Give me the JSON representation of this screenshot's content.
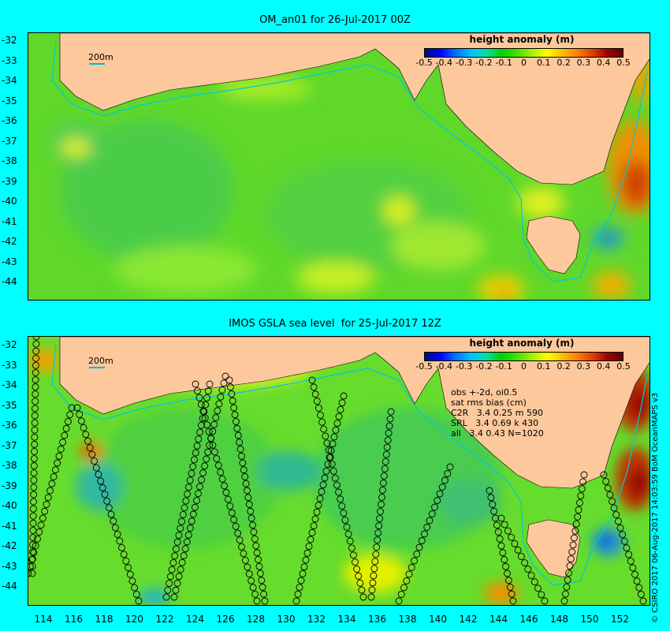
{
  "panel_top": {
    "title": "OM_an01 for 26-Jul-2017 00Z",
    "colorbar_title": "height anomaly (m)",
    "depth_label": "200m"
  },
  "panel_bottom": {
    "title": "IMOS GSLA sea level  for 25-Jul-2017 12Z",
    "colorbar_title": "height anomaly (m)",
    "depth_label": "200m",
    "stats": {
      "line1": "obs +-2d, oi0.5",
      "line2": "sat rms bias (cm)",
      "line3": "C2R   3.4 0.25 m 590",
      "line4": "SRL   3.4 0.69 k 430",
      "line5": "all   3.4 0.43 N=1020"
    }
  },
  "colorbar_ticks": [
    "-0.5",
    "-0.4",
    "-0.3",
    "-0.2",
    "-0.1",
    "0",
    "0.1",
    "0.2",
    "0.3",
    "0.4",
    "0.5"
  ],
  "lat_labels": [
    "-32",
    "-33",
    "-34",
    "-35",
    "-36",
    "-37",
    "-38",
    "-39",
    "-40",
    "-41",
    "-42",
    "-43",
    "-44"
  ],
  "lon_labels": [
    "114",
    "116",
    "118",
    "120",
    "122",
    "124",
    "126",
    "128",
    "130",
    "132",
    "134",
    "136",
    "138",
    "140",
    "142",
    "144",
    "146",
    "148",
    "150",
    "152"
  ],
  "credit": "© CSIRO 2017  06-Aug-2017 14:03:59 BoM OceanMAPS v3",
  "colors": {
    "background": "#00ffff",
    "land": "#fcc89c",
    "ocean_base": "#6ee62c",
    "coast_contour": "#00c8e0"
  }
}
